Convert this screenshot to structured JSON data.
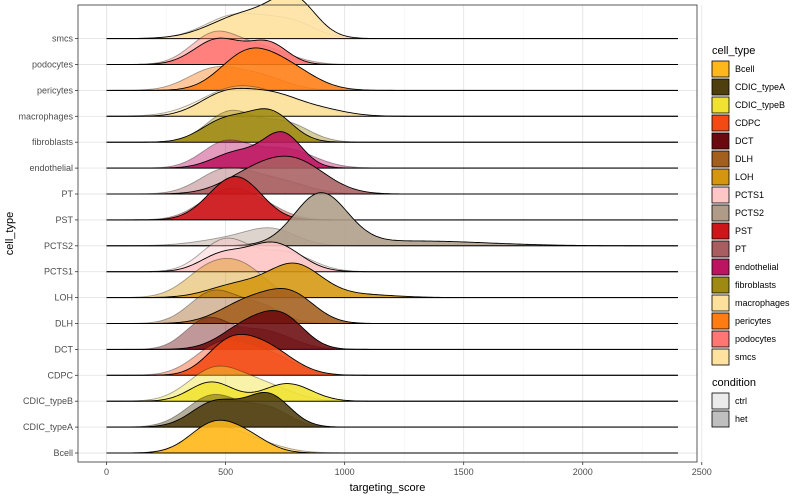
{
  "chart_data": {
    "type": "ridgeline",
    "xlabel": "targeting_score",
    "ylabel": "cell_type",
    "xlim": [
      -120,
      2480
    ],
    "x_ticks": [
      0,
      500,
      1000,
      1500,
      2000,
      2500
    ],
    "grid": true,
    "theme": "bw",
    "categories": [
      "Bcell",
      "CDIC_typeA",
      "CDIC_typeB",
      "CDPC",
      "DCT",
      "DLH",
      "LOH",
      "PCTS1",
      "PCTS2",
      "PST",
      "PT",
      "endothelial",
      "fibroblasts",
      "macrophages",
      "pericytes",
      "podocytes",
      "smcs"
    ],
    "cell_type_colors": {
      "Bcell": "#FFB81C",
      "CDIC_typeA": "#4F3E0E",
      "CDIC_typeB": "#F1E231",
      "CDPC": "#F24A12",
      "DCT": "#6B0A0E",
      "DLH": "#A35F1E",
      "LOH": "#D4960F",
      "PCTS1": "#FFC6C6",
      "PCTS2": "#AE9C88",
      "PST": "#CD1619",
      "PT": "#A85E61",
      "endothelial": "#BD1461",
      "fibroblasts": "#9E8A12",
      "macrophages": "#FCE09B",
      "pericytes": "#FF7C12",
      "podocytes": "#FF7673",
      "smcs": "#FFE1A0"
    },
    "legend": {
      "position": "right",
      "cell_type_title": "cell_type",
      "condition_title": "condition",
      "conditions": [
        {
          "name": "ctrl",
          "fill": "#EBEBEB"
        },
        {
          "name": "het",
          "fill": "#BFBFBF"
        }
      ]
    },
    "ridges": [
      {
        "cell_type": "Bcell",
        "ctrl": {
          "peaks": [
            [
              430,
              0.55,
              100
            ],
            [
              570,
              0.45,
              130
            ]
          ]
        },
        "het": {
          "peaks": [
            [
              450,
              0.9,
              100
            ],
            [
              600,
              0.4,
              90
            ]
          ]
        }
      },
      {
        "cell_type": "CDIC_typeA",
        "ctrl": {
          "peaks": [
            [
              450,
              1.0,
              110
            ],
            [
              680,
              0.55,
              90
            ]
          ]
        },
        "het": {
          "peaks": [
            [
              460,
              0.8,
              100
            ],
            [
              680,
              1.0,
              90
            ]
          ]
        }
      },
      {
        "cell_type": "CDIC_typeB",
        "ctrl": {
          "peaks": [
            [
              450,
              0.95,
              110
            ],
            [
              650,
              0.5,
              120
            ]
          ]
        },
        "het": {
          "peaks": [
            [
              440,
              0.6,
              90
            ],
            [
              760,
              0.55,
              100
            ]
          ]
        }
      },
      {
        "cell_type": "CDPC",
        "ctrl": {
          "peaks": [
            [
              480,
              0.95,
              110
            ],
            [
              680,
              0.6,
              110
            ]
          ]
        },
        "het": {
          "peaks": [
            [
              500,
              0.7,
              90
            ],
            [
              650,
              0.95,
              120
            ]
          ]
        }
      },
      {
        "cell_type": "DCT",
        "ctrl": {
          "peaks": [
            [
              420,
              0.9,
              90
            ],
            [
              650,
              0.6,
              120
            ]
          ]
        },
        "het": {
          "peaks": [
            [
              600,
              0.8,
              110
            ],
            [
              750,
              0.8,
              90
            ]
          ]
        }
      },
      {
        "cell_type": "DLH",
        "ctrl": {
          "peaks": [
            [
              450,
              1.0,
              100
            ],
            [
              650,
              0.5,
              90
            ]
          ]
        },
        "het": {
          "peaks": [
            [
              600,
              0.7,
              120
            ],
            [
              780,
              0.8,
              100
            ]
          ]
        }
      },
      {
        "cell_type": "LOH",
        "ctrl": {
          "peaks": [
            [
              450,
              1.0,
              110
            ],
            [
              600,
              0.6,
              90
            ]
          ]
        },
        "het": {
          "peaks": [
            [
              550,
              0.4,
              120
            ],
            [
              790,
              1.0,
              110
            ],
            [
              1050,
              0.1,
              150
            ]
          ]
        }
      },
      {
        "cell_type": "PCTS1",
        "ctrl": {
          "peaks": [
            [
              500,
              1.0,
              100
            ],
            [
              750,
              0.6,
              110
            ]
          ]
        },
        "het": {
          "peaks": [
            [
              480,
              0.5,
              90
            ],
            [
              700,
              0.9,
              110
            ]
          ]
        }
      },
      {
        "cell_type": "PCTS2",
        "ctrl": {
          "peaks": [
            [
              550,
              0.25,
              150
            ],
            [
              700,
              0.4,
              100
            ]
          ]
        },
        "het": {
          "peaks": [
            [
              900,
              1.6,
              110
            ],
            [
              1300,
              0.15,
              300
            ]
          ]
        }
      },
      {
        "cell_type": "PST",
        "ctrl": {
          "peaks": [
            [
              500,
              0.85,
              110
            ],
            [
              650,
              0.35,
              100
            ]
          ]
        },
        "het": {
          "peaks": [
            [
              510,
              1.0,
              100
            ],
            [
              600,
              0.5,
              90
            ]
          ]
        }
      },
      {
        "cell_type": "PT",
        "ctrl": {
          "peaks": [
            [
              500,
              0.75,
              110
            ],
            [
              720,
              0.4,
              120
            ]
          ]
        },
        "het": {
          "peaks": [
            [
              600,
              0.5,
              120
            ],
            [
              790,
              1.0,
              130
            ]
          ]
        }
      },
      {
        "cell_type": "endothelial",
        "ctrl": {
          "peaks": [
            [
              500,
              0.8,
              100
            ],
            [
              750,
              0.6,
              120
            ]
          ]
        },
        "het": {
          "peaks": [
            [
              550,
              0.5,
              100
            ],
            [
              740,
              1.05,
              80
            ]
          ]
        }
      },
      {
        "cell_type": "fibroblasts",
        "ctrl": {
          "peaks": [
            [
              520,
              0.95,
              100
            ],
            [
              750,
              0.6,
              100
            ]
          ]
        },
        "het": {
          "peaks": [
            [
              500,
              0.7,
              100
            ],
            [
              690,
              0.9,
              90
            ]
          ]
        }
      },
      {
        "cell_type": "macrophages",
        "ctrl": {
          "peaks": [
            [
              550,
              0.9,
              150
            ],
            [
              800,
              0.3,
              130
            ]
          ]
        },
        "het": {
          "peaks": [
            [
              500,
              0.7,
              110
            ],
            [
              700,
              0.6,
              110
            ],
            [
              900,
              0.2,
              110
            ]
          ]
        }
      },
      {
        "cell_type": "pericytes",
        "ctrl": {
          "peaks": [
            [
              450,
              0.65,
              110
            ],
            [
              650,
              0.4,
              110
            ]
          ]
        },
        "het": {
          "peaks": [
            [
              580,
              1.0,
              110
            ],
            [
              750,
              0.7,
              120
            ]
          ]
        }
      },
      {
        "cell_type": "podocytes",
        "ctrl": {
          "peaks": [
            [
              450,
              0.9,
              100
            ],
            [
              650,
              0.5,
              120
            ]
          ]
        },
        "het": {
          "peaks": [
            [
              470,
              0.8,
              100
            ],
            [
              680,
              0.65,
              80
            ]
          ]
        }
      },
      {
        "cell_type": "smcs",
        "ctrl": {
          "peaks": [
            [
              550,
              0.75,
              130
            ],
            [
              780,
              0.45,
              100
            ]
          ]
        },
        "het": {
          "peaks": [
            [
              600,
              0.8,
              150
            ],
            [
              790,
              1.0,
              90
            ]
          ]
        }
      }
    ]
  }
}
